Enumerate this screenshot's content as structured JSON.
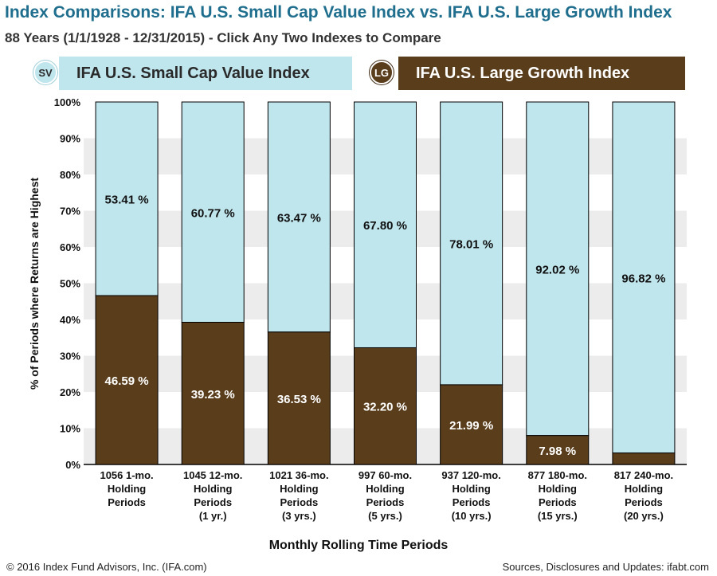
{
  "header": {
    "title": "Index Comparisons:  IFA U.S. Small Cap Value Index vs. IFA U.S. Large Growth Index",
    "subtitle": "88 Years (1/1/1928 - 12/31/2015)  - Click Any Two Indexes to Compare"
  },
  "legend": {
    "sv_badge": "SV",
    "sv_label": "IFA U.S. Small Cap Value Index",
    "lg_badge": "LG",
    "lg_label": "IFA U.S. Large Growth Index"
  },
  "footer": {
    "copyright": "© 2016 Index Fund Advisors, Inc. (IFA.com)",
    "sources": "Sources, Disclosures and Updates: ifabt.com"
  },
  "colors": {
    "small_cap_value": "#bfe5ed",
    "large_growth": "#5a3d1b",
    "title": "#1f6e8e",
    "grid_band": "#ececec"
  },
  "chart_data": {
    "type": "bar",
    "stacked": true,
    "xlabel": "Monthly Rolling Time Periods",
    "ylabel": "% of Periods where Returns are Highest",
    "ylim": [
      0,
      100
    ],
    "yticks": [
      "0%",
      "10%",
      "20%",
      "30%",
      "40%",
      "50%",
      "60%",
      "70%",
      "80%",
      "90%",
      "100%"
    ],
    "categories": [
      [
        "1056 1-mo.",
        "Holding",
        "Periods"
      ],
      [
        "1045 12-mo.",
        "Holding",
        "Periods",
        "(1 yr.)"
      ],
      [
        "1021 36-mo.",
        "Holding",
        "Periods",
        "(3 yrs.)"
      ],
      [
        "997 60-mo.",
        "Holding",
        "Periods",
        "(5 yrs.)"
      ],
      [
        "937 120-mo.",
        "Holding",
        "Periods",
        "(10 yrs.)"
      ],
      [
        "877 180-mo.",
        "Holding",
        "Periods",
        "(15 yrs.)"
      ],
      [
        "817 240-mo.",
        "Holding",
        "Periods",
        "(20 yrs.)"
      ]
    ],
    "series": [
      {
        "key": "large_growth",
        "values": [
          46.59,
          39.23,
          36.53,
          32.2,
          21.99,
          7.98,
          3.18
        ],
        "labels": [
          "46.59 %",
          "39.23 %",
          "36.53 %",
          "32.20 %",
          "21.99 %",
          "7.98 %",
          ""
        ]
      },
      {
        "key": "small_cap_value",
        "values": [
          53.41,
          60.77,
          63.47,
          67.8,
          78.01,
          92.02,
          96.82
        ],
        "labels": [
          "53.41 %",
          "60.77 %",
          "63.47 %",
          "67.80 %",
          "78.01 %",
          "92.02 %",
          "96.82 %"
        ]
      }
    ],
    "grid": "alternating-bands",
    "legend_position": "top"
  }
}
